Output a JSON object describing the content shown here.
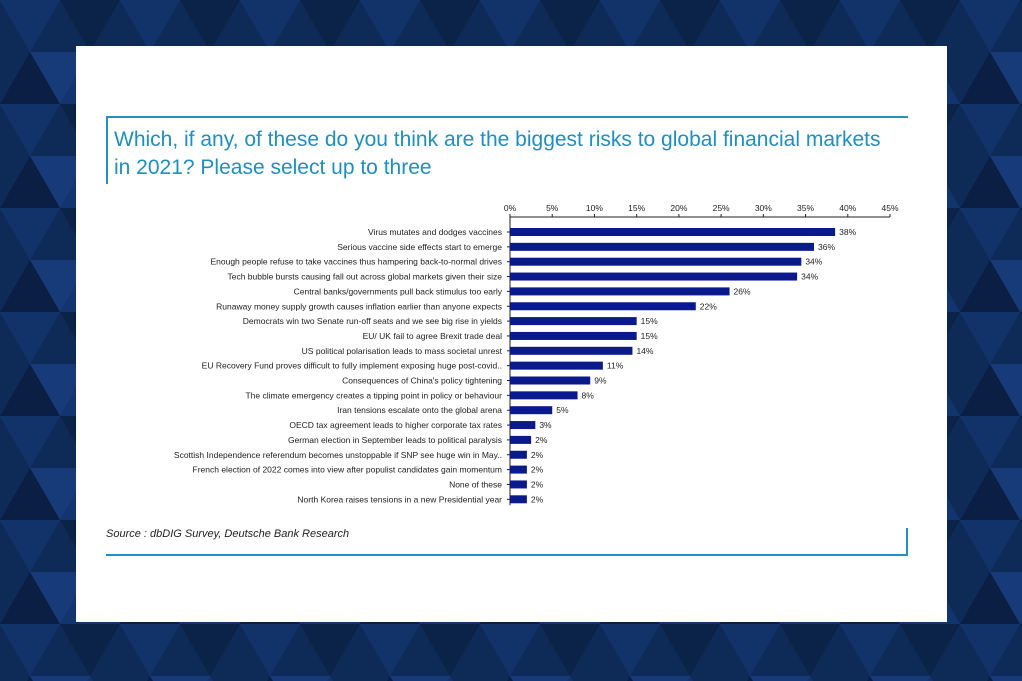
{
  "page": {
    "title": "Which, if any, of these do you think are the biggest risks to global financial markets in 2021? Please select up to three",
    "source": "Source : dbDIG Survey, Deutsche Bank Research"
  },
  "colors": {
    "background": "#0e2a57",
    "accent": "#1f93c4",
    "bar": "#0a1a8c"
  },
  "chart_data": {
    "type": "bar",
    "orientation": "horizontal",
    "title": "Which, if any, of these do you think are the biggest risks to global financial markets in 2021? Please select up to three",
    "xlim": [
      0,
      45
    ],
    "xticks": [
      0,
      5,
      10,
      15,
      20,
      25,
      30,
      35,
      40,
      45
    ],
    "xtick_labels": [
      "0%",
      "5%",
      "10%",
      "15%",
      "20%",
      "25%",
      "30%",
      "35%",
      "40%",
      "45%"
    ],
    "axis_position": "top",
    "grid": false,
    "categories": [
      "Virus mutates and dodges vaccines",
      "Serious vaccine side effects start to emerge",
      "Enough people refuse to take vaccines thus hampering back-to-normal drives",
      "Tech bubble bursts causing fall out across global markets given their size",
      "Central banks/governments pull back stimulus too early",
      "Runaway money supply growth causes inflation earlier than anyone expects",
      "Democrats win two Senate run-off seats and we see big rise in yields",
      "EU/ UK fail to agree Brexit trade deal",
      "US political polarisation leads to mass societal unrest",
      "EU Recovery Fund proves difficult to fully implement exposing huge post-covid..",
      "Consequences of China's policy tightening",
      "The climate emergency creates a tipping point in policy or behaviour",
      "Iran tensions escalate onto the global arena",
      "OECD tax agreement leads to higher corporate tax rates",
      "German election in September leads to political paralysis",
      "Scottish Independence referendum becomes unstoppable if SNP see huge win in May..",
      "French election of 2022 comes into view after populist candidates gain momentum",
      "None of these",
      "North Korea raises tensions in a new Presidential year"
    ],
    "values": [
      38.5,
      36,
      34.5,
      34,
      26,
      22,
      15,
      15,
      14.5,
      11,
      9.5,
      8,
      5,
      3,
      2.5,
      2,
      2,
      2,
      2
    ],
    "value_labels": [
      "38%",
      "36%",
      "34%",
      "34%",
      "26%",
      "22%",
      "15%",
      "15%",
      "14%",
      "11%",
      "9%",
      "8%",
      "5%",
      "3%",
      "2%",
      "2%",
      "2%",
      "2%",
      "2%"
    ]
  }
}
